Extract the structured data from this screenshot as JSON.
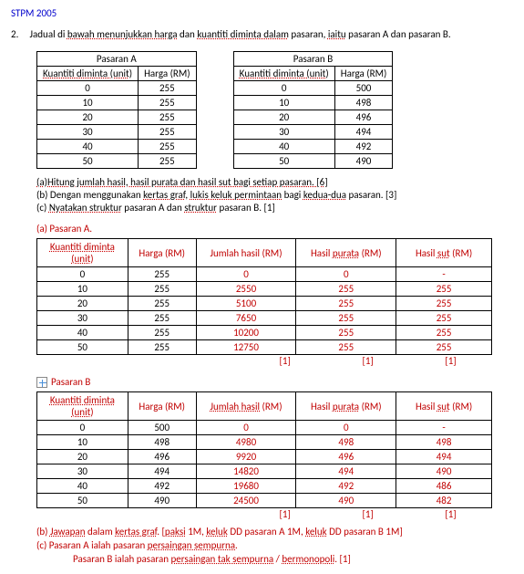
{
  "header": "STPM 2005",
  "question": {
    "num": "2.",
    "text_parts": [
      "Jadual di ",
      "bawah menunjukkan harga",
      " dan ",
      "kuantiti diminta dalam",
      " pasaran, ",
      "iaitu",
      " pasaran A dan pasaran B."
    ]
  },
  "table_a": {
    "caption": "Pasaran A",
    "headers": [
      "Kuantiti diminta (unit)",
      "Harga (RM)"
    ],
    "rows": [
      [
        "0",
        "255"
      ],
      [
        "10",
        "255"
      ],
      [
        "20",
        "255"
      ],
      [
        "30",
        "255"
      ],
      [
        "40",
        "255"
      ],
      [
        "50",
        "255"
      ]
    ]
  },
  "table_b": {
    "caption": "Pasaran B",
    "headers": [
      "Kuantiti diminta (unit)",
      "Harga (RM)"
    ],
    "rows": [
      [
        "0",
        "500"
      ],
      [
        "10",
        "498"
      ],
      [
        "20",
        "496"
      ],
      [
        "30",
        "494"
      ],
      [
        "40",
        "492"
      ],
      [
        "50",
        "490"
      ]
    ]
  },
  "subq": {
    "a": "(a)Hitung jumlah hasil, hasil purata dan hasil sut bagi setiap pasaran.   [6]",
    "b": "(b) Dengan menggunakan kertas graf, lukis keluk permintaan bagi kedua-dua pasaran.    [3]",
    "c": "(c) Nyatakan struktur pasaran A dan struktur pasaran B.                        [1]"
  },
  "sec_a": {
    "label": "(a)   Pasaran A.",
    "headers": [
      "Kuantiti diminta (unit)",
      "Harga (RM)",
      "Jumlah hasil (RM)",
      "Hasil purata (RM)",
      "Hasil sut (RM)"
    ],
    "rows": [
      [
        "0",
        "255",
        "0",
        "0",
        "-"
      ],
      [
        "10",
        "255",
        "2550",
        "255",
        "255"
      ],
      [
        "20",
        "255",
        "5100",
        "255",
        "255"
      ],
      [
        "30",
        "255",
        "7650",
        "255",
        "255"
      ],
      [
        "40",
        "255",
        "10200",
        "255",
        "255"
      ],
      [
        "50",
        "255",
        "12750",
        "255",
        "255"
      ]
    ],
    "marks": [
      "[1]",
      "[1]",
      "[1]"
    ]
  },
  "sec_b": {
    "label": "Pasaran B",
    "headers": [
      "Kuantiti diminta (unit)",
      "Harga (RM)",
      "Jumlah hasil (RM)",
      "Hasil purata (RM)",
      "Hasil sut (RM)"
    ],
    "rows": [
      [
        "0",
        "500",
        "0",
        "0",
        "-"
      ],
      [
        "10",
        "498",
        "4980",
        "498",
        "498"
      ],
      [
        "20",
        "496",
        "9920",
        "496",
        "494"
      ],
      [
        "30",
        "494",
        "14820",
        "494",
        "490"
      ],
      [
        "40",
        "492",
        "19680",
        "492",
        "486"
      ],
      [
        "50",
        "490",
        "24500",
        "490",
        "482"
      ]
    ],
    "marks": [
      "[1]",
      "[1]",
      "[1]"
    ]
  },
  "answers": {
    "b": "(b) Jawapan dalam kertas graf. [paksi 1M, keluk DD pasaran A 1M, keluk DD pasaran B 1M]",
    "c1": "(c) Pasaran A ialah pasaran persaingan sempurna.",
    "c2": "Pasaran B ialah pasaran persaingan tak sempurna / bermonopoli.     [1]"
  }
}
